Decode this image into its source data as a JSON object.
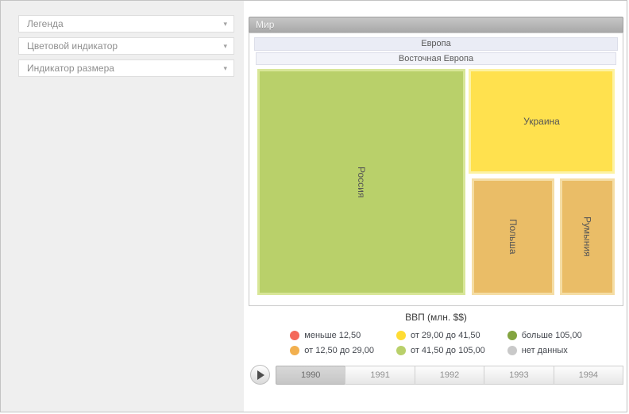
{
  "sidebar": {
    "items": [
      {
        "label": "Легенда"
      },
      {
        "label": "Цветовой индикатор"
      },
      {
        "label": "Индикатор размера"
      }
    ]
  },
  "icons": {
    "chevron_down": "▾"
  },
  "treemap": {
    "title": "Мир",
    "group": "Европа",
    "subgroup": "Восточная Европа",
    "nodes": [
      {
        "label": "Россия",
        "color": "#b9d06a",
        "border": "#d8e698",
        "orientation": "vertical"
      },
      {
        "label": "Украина",
        "color": "#ffe14e",
        "border": "#fdf2a2",
        "orientation": "horizontal"
      },
      {
        "label": "Польша",
        "color": "#eabd67",
        "border": "#f5dda4",
        "orientation": "vertical"
      },
      {
        "label": "Румыния",
        "color": "#eabd67",
        "border": "#f5dda4",
        "orientation": "vertical"
      }
    ]
  },
  "legend": {
    "title": "ВВП (млн. $$)",
    "items": [
      {
        "label": "меньше 12,50",
        "color": "#f4695a"
      },
      {
        "label": "от 12,50 до 29,00",
        "color": "#f2b04f"
      },
      {
        "label": "от 29,00 до 41,50",
        "color": "#ffdc33"
      },
      {
        "label": "от 41,50 до 105,00",
        "color": "#b9d06a"
      },
      {
        "label": "больше 105,00",
        "color": "#83a440"
      },
      {
        "label": "нет данных",
        "color": "#c9c9c9"
      }
    ]
  },
  "timeline": {
    "years": [
      "1990",
      "1991",
      "1992",
      "1993",
      "1994"
    ],
    "selected": "1990"
  }
}
